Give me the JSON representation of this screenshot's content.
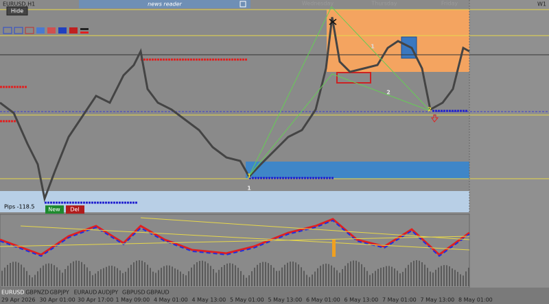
{
  "window": {
    "symbol": "EURUSD,H1",
    "timeframe": "W1",
    "hide_button": "Hide",
    "news_panel": "news reader",
    "day_labels": [
      "Wednesday",
      "Thursday",
      "Friday"
    ],
    "pips": "Pips -118.5",
    "buttons": [
      "New",
      "Del"
    ],
    "pivot_labels": [
      "1",
      "1",
      "2",
      "2",
      "1"
    ],
    "time_axis": [
      "29 Apr 2026",
      "30 Apr 01:00",
      "30 Apr 17:00",
      "1 May 09:00",
      "4 May 01:00",
      "4 May 13:00",
      "5 May 01:00",
      "5 May 13:00",
      "6 May 01:00",
      "6 May 13:00",
      "7 May 01:00",
      "7 May 13:00",
      "8 May 01:00"
    ],
    "symbol_tabs": [
      "EURUSD",
      "GBPNZD",
      "GBPJPY",
      "EURAUD",
      "AUDJPY",
      "GBPUSD",
      "GBPAUD"
    ]
  }
}
